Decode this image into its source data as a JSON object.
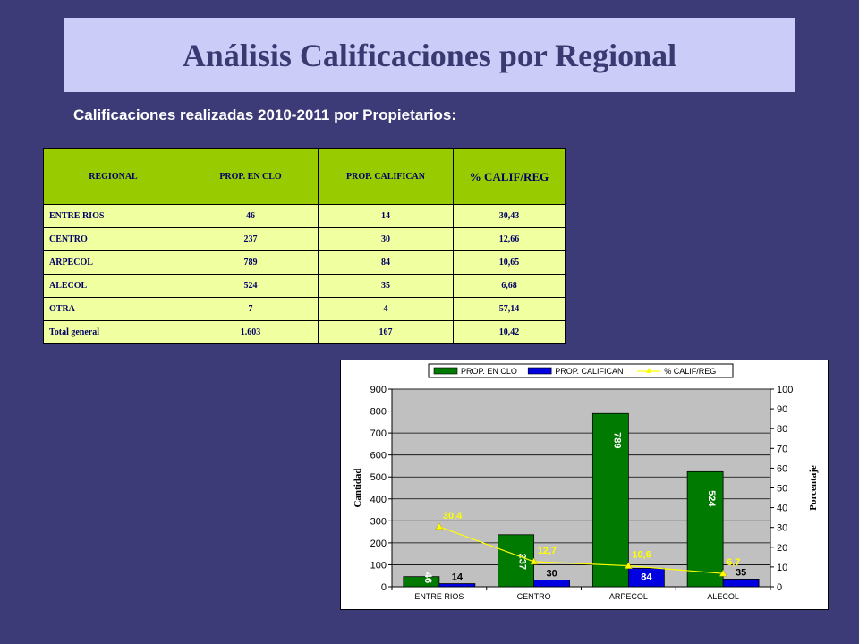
{
  "title": "Análisis Calificaciones por Regional",
  "subtitle": "Calificaciones realizadas 2010-2011 por Propietarios:",
  "table": {
    "headers": [
      "REGIONAL",
      "PROP. EN CLO",
      "PROP. CALIFICAN",
      "% CALIF/REG"
    ],
    "rows": [
      [
        "ENTRE RIOS",
        "46",
        "14",
        "30,43"
      ],
      [
        "CENTRO",
        "237",
        "30",
        "12,66"
      ],
      [
        "ARPECOL",
        "789",
        "84",
        "10,65"
      ],
      [
        "ALECOL",
        "524",
        "35",
        "6,68"
      ],
      [
        "OTRA",
        "7",
        "4",
        "57,14"
      ],
      [
        "Total general",
        "1.603",
        "167",
        "10,42"
      ]
    ]
  },
  "chart_data": {
    "type": "bar",
    "categories": [
      "ENTRE RIOS",
      "CENTRO",
      "ARPECOL",
      "ALECOL"
    ],
    "series": [
      {
        "name": "PROP. EN CLO",
        "type": "bar",
        "axis": "left",
        "color": "#007a00",
        "values": [
          46,
          237,
          789,
          524
        ],
        "labels": [
          "46",
          "237",
          "789",
          "524"
        ]
      },
      {
        "name": "PROP. CALIFICAN",
        "type": "bar",
        "axis": "left",
        "color": "#0000e0",
        "values": [
          14,
          30,
          84,
          35
        ],
        "labels": [
          "14",
          "30",
          "84",
          "35"
        ]
      },
      {
        "name": "% CALIF/REG",
        "type": "line",
        "axis": "right",
        "color": "#ffff00",
        "values": [
          30.4,
          12.7,
          10.6,
          6.7
        ],
        "labels": [
          "30,4",
          "12,7",
          "10,6",
          "6,7"
        ]
      }
    ],
    "ylabel": "Cantidad",
    "y2label": "Porcentaje",
    "ylim": [
      0,
      900
    ],
    "y2lim": [
      0,
      100
    ],
    "yticks": [
      0,
      100,
      200,
      300,
      400,
      500,
      600,
      700,
      800,
      900
    ],
    "y2ticks": [
      0,
      10,
      20,
      30,
      40,
      50,
      60,
      70,
      80,
      90,
      100
    ],
    "plot_background": "#c0c0c0",
    "legend_position": "top"
  }
}
